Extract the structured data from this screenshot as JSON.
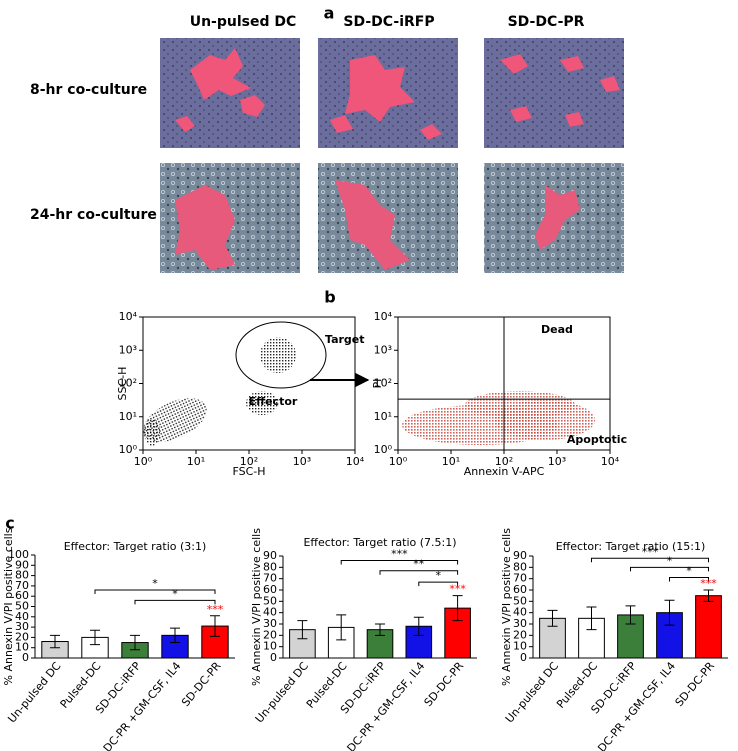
{
  "panel_labels": [
    "a",
    "b",
    "c"
  ],
  "panel_a": {
    "columns": [
      "Un-pulsed DC",
      "SD-DC-iRFP",
      "SD-DC-PR"
    ],
    "rows": [
      "8-hr co-culture",
      "24-hr co-culture"
    ]
  },
  "chart_data": [
    {
      "type": "scatter",
      "xlabel": "FSC-H",
      "ylabel": "SSC-H",
      "xlim": [
        1,
        10000
      ],
      "ylim": [
        1,
        10000
      ],
      "log": true,
      "xticks": [
        {
          "value": 1,
          "label": "10⁰"
        },
        {
          "value": 10,
          "label": "10¹"
        },
        {
          "value": 100,
          "label": "10²"
        },
        {
          "value": 1000,
          "label": "10³"
        },
        {
          "value": 10000,
          "label": "10⁴"
        }
      ],
      "yticks": [
        {
          "value": 1,
          "label": "10⁰"
        },
        {
          "value": 10,
          "label": "10¹"
        },
        {
          "value": 100,
          "label": "10²"
        },
        {
          "value": 1000,
          "label": "10³"
        },
        {
          "value": 10000,
          "label": "10⁴"
        }
      ],
      "annotations": [
        "Target",
        "Effector"
      ],
      "color": "#000000"
    },
    {
      "type": "scatter",
      "xlabel": "Annexin V-APC",
      "ylabel": "PI",
      "xlim": [
        1,
        10000
      ],
      "ylim": [
        1,
        10000
      ],
      "log": true,
      "xticks": [
        {
          "value": 1,
          "label": "10⁰"
        },
        {
          "value": 10,
          "label": "10¹"
        },
        {
          "value": 100,
          "label": "10²"
        },
        {
          "value": 1000,
          "label": "10³"
        },
        {
          "value": 10000,
          "label": "10⁴"
        }
      ],
      "yticks": [
        {
          "value": 1,
          "label": "10⁰"
        },
        {
          "value": 10,
          "label": "10¹"
        },
        {
          "value": 100,
          "label": "10²"
        },
        {
          "value": 1000,
          "label": "10³"
        },
        {
          "value": 10000,
          "label": "10⁴"
        }
      ],
      "annotations": [
        "Dead",
        "Apoptotic"
      ],
      "quadrant": [
        100,
        34
      ],
      "color": "#c8463c"
    },
    {
      "type": "bar",
      "title": "Effector: Target ratio (3:1)",
      "ylabel": "% Annexin V/PI positive cells",
      "categories": [
        "Un-pulsed DC",
        "Pulsed-DC",
        "SD-DC-iRFP",
        "DC-PR +GM-CSF, IL4",
        "SD-DC-PR"
      ],
      "values": [
        16,
        20,
        15,
        22,
        31
      ],
      "errors": [
        6,
        7,
        7,
        7,
        10
      ],
      "colors": [
        "#d3d3d3",
        "#ffffff",
        "#3b7f3b",
        "#1212e6",
        "#ff0000"
      ],
      "ylim": [
        0,
        100
      ],
      "yticks": [
        0,
        10,
        20,
        30,
        40,
        50,
        60,
        70,
        80,
        90,
        100
      ],
      "brackets": [
        {
          "from": 1,
          "to": 4,
          "y": 66,
          "label": "*"
        },
        {
          "from": 2,
          "to": 4,
          "y": 56,
          "label": "*"
        }
      ],
      "highlight": {
        "category": 4,
        "label": "***",
        "color": "#ff0000"
      }
    },
    {
      "type": "bar",
      "title": "Effector: Target ratio (7.5:1)",
      "ylabel": "% Annexin V/PI positive cells",
      "categories": [
        "Un-pulsed DC",
        "Pulsed-DC",
        "SD-DC-iRFP",
        "DC-PR +GM-CSF, IL4",
        "SD-DC-PR"
      ],
      "values": [
        25,
        27,
        25,
        28,
        44
      ],
      "errors": [
        8,
        11,
        5,
        8,
        11
      ],
      "colors": [
        "#d3d3d3",
        "#ffffff",
        "#3b7f3b",
        "#1212e6",
        "#ff0000"
      ],
      "ylim": [
        0,
        90
      ],
      "yticks": [
        0,
        10,
        20,
        30,
        40,
        50,
        60,
        70,
        80,
        90
      ],
      "brackets": [
        {
          "from": 1,
          "to": 4,
          "y": 86,
          "label": "***"
        },
        {
          "from": 2,
          "to": 4,
          "y": 77,
          "label": "**"
        },
        {
          "from": 3,
          "to": 4,
          "y": 67,
          "label": "*"
        }
      ],
      "highlight": {
        "category": 4,
        "label": "***",
        "color": "#ff0000"
      }
    },
    {
      "type": "bar",
      "title": "Effector: Target ratio (15:1)",
      "ylabel": "% Annexin V/PI positive cells",
      "categories": [
        "Un-pulsed DC",
        "Pulsed-DC",
        "SD-DC-iRFP",
        "DC-PR +GM-CSF, IL4",
        "SD-DC-PR"
      ],
      "values": [
        35,
        35,
        38,
        40,
        55
      ],
      "errors": [
        7,
        10,
        8,
        11,
        5
      ],
      "colors": [
        "#d3d3d3",
        "#ffffff",
        "#3b7f3b",
        "#1212e6",
        "#ff0000"
      ],
      "ylim": [
        0,
        90
      ],
      "yticks": [
        0,
        10,
        20,
        30,
        40,
        50,
        60,
        70,
        80,
        90
      ],
      "brackets": [
        {
          "from": 1,
          "to": 4,
          "y": 88,
          "label": "***"
        },
        {
          "from": 2,
          "to": 4,
          "y": 80,
          "label": "*"
        },
        {
          "from": 3,
          "to": 4,
          "y": 71,
          "label": "*"
        }
      ],
      "highlight": {
        "category": 4,
        "label": "***",
        "color": "#ff0000"
      }
    }
  ]
}
